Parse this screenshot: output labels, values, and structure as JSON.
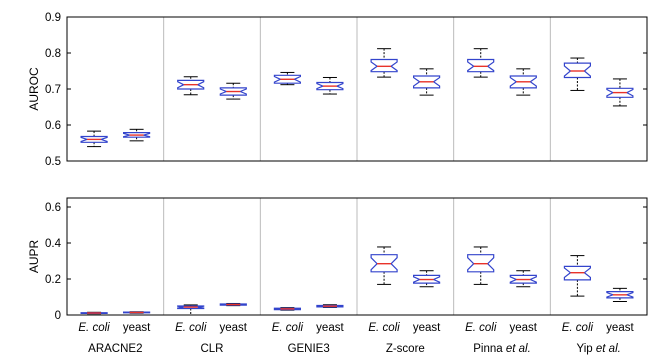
{
  "chart_data": {
    "type": "box",
    "groups": [
      {
        "label": "ARACNE2",
        "parts": [
          {
            "text": "ARACNE2",
            "italic": false
          }
        ]
      },
      {
        "label": "CLR",
        "parts": [
          {
            "text": "CLR",
            "italic": false
          }
        ]
      },
      {
        "label": "GENIE3",
        "parts": [
          {
            "text": "GENIE3",
            "italic": false
          }
        ]
      },
      {
        "label": "Z-score",
        "parts": [
          {
            "text": "Z-score",
            "italic": false
          }
        ]
      },
      {
        "label": "Pinna et al.",
        "parts": [
          {
            "text": "Pinna ",
            "italic": false
          },
          {
            "text": "et al.",
            "italic": true
          }
        ]
      },
      {
        "label": "Yip et al.",
        "parts": [
          {
            "text": "Yip ",
            "italic": false
          },
          {
            "text": "et al.",
            "italic": true
          }
        ]
      }
    ],
    "categories": [
      {
        "label": "E. coli",
        "italic": true
      },
      {
        "label": "yeast",
        "italic": false
      }
    ],
    "colors": {
      "box": "#3344cc",
      "median": "#e8332a",
      "whisker": "#000000",
      "separator": "#bbbbbb",
      "frame": "#000000"
    },
    "panels": [
      {
        "ylabel": "AUROC",
        "ylim": [
          0.5,
          0.9
        ],
        "yticks": [
          "0.5",
          "0.6",
          "0.7",
          "0.8",
          "0.9"
        ],
        "boxes": [
          {
            "group": "ARACNE2",
            "category": "E. coli",
            "whisker_low": 0.54,
            "q1": 0.552,
            "median": 0.56,
            "q3": 0.568,
            "whisker_high": 0.583
          },
          {
            "group": "ARACNE2",
            "category": "yeast",
            "whisker_low": 0.556,
            "q1": 0.566,
            "median": 0.572,
            "q3": 0.579,
            "whisker_high": 0.588
          },
          {
            "group": "CLR",
            "category": "E. coli",
            "whisker_low": 0.684,
            "q1": 0.7,
            "median": 0.712,
            "q3": 0.724,
            "whisker_high": 0.734
          },
          {
            "group": "CLR",
            "category": "yeast",
            "whisker_low": 0.672,
            "q1": 0.683,
            "median": 0.693,
            "q3": 0.703,
            "whisker_high": 0.716
          },
          {
            "group": "GENIE3",
            "category": "E. coli",
            "whisker_low": 0.712,
            "q1": 0.716,
            "median": 0.727,
            "q3": 0.738,
            "whisker_high": 0.746
          },
          {
            "group": "GENIE3",
            "category": "yeast",
            "whisker_low": 0.686,
            "q1": 0.698,
            "median": 0.708,
            "q3": 0.718,
            "whisker_high": 0.732
          },
          {
            "group": "Z-score",
            "category": "E. coli",
            "whisker_low": 0.733,
            "q1": 0.748,
            "median": 0.763,
            "q3": 0.782,
            "whisker_high": 0.812
          },
          {
            "group": "Z-score",
            "category": "yeast",
            "whisker_low": 0.683,
            "q1": 0.703,
            "median": 0.72,
            "q3": 0.736,
            "whisker_high": 0.756
          },
          {
            "group": "Pinna et al.",
            "category": "E. coli",
            "whisker_low": 0.733,
            "q1": 0.748,
            "median": 0.763,
            "q3": 0.782,
            "whisker_high": 0.812
          },
          {
            "group": "Pinna et al.",
            "category": "yeast",
            "whisker_low": 0.683,
            "q1": 0.703,
            "median": 0.72,
            "q3": 0.736,
            "whisker_high": 0.756
          },
          {
            "group": "Yip et al.",
            "category": "E. coli",
            "whisker_low": 0.696,
            "q1": 0.732,
            "median": 0.75,
            "q3": 0.772,
            "whisker_high": 0.786
          },
          {
            "group": "Yip et al.",
            "category": "yeast",
            "whisker_low": 0.653,
            "q1": 0.677,
            "median": 0.69,
            "q3": 0.702,
            "whisker_high": 0.728
          }
        ]
      },
      {
        "ylabel": "AUPR",
        "ylim": [
          0,
          0.65
        ],
        "yticks": [
          "0",
          "0.2",
          "0.4",
          "0.6"
        ],
        "boxes": [
          {
            "group": "ARACNE2",
            "category": "E. coli",
            "whisker_low": 0.007,
            "q1": 0.009,
            "median": 0.011,
            "q3": 0.013,
            "whisker_high": 0.015
          },
          {
            "group": "ARACNE2",
            "category": "yeast",
            "whisker_low": 0.01,
            "q1": 0.012,
            "median": 0.014,
            "q3": 0.016,
            "whisker_high": 0.018
          },
          {
            "group": "CLR",
            "category": "E. coli",
            "whisker_low": 0.0,
            "q1": 0.036,
            "median": 0.044,
            "q3": 0.05,
            "whisker_high": 0.056
          },
          {
            "group": "CLR",
            "category": "yeast",
            "whisker_low": 0.052,
            "q1": 0.055,
            "median": 0.058,
            "q3": 0.061,
            "whisker_high": 0.064
          },
          {
            "group": "GENIE3",
            "category": "E. coli",
            "whisker_low": 0.027,
            "q1": 0.03,
            "median": 0.034,
            "q3": 0.038,
            "whisker_high": 0.041
          },
          {
            "group": "GENIE3",
            "category": "yeast",
            "whisker_low": 0.042,
            "q1": 0.045,
            "median": 0.049,
            "q3": 0.053,
            "whisker_high": 0.057
          },
          {
            "group": "Z-score",
            "category": "E. coli",
            "whisker_low": 0.17,
            "q1": 0.24,
            "median": 0.285,
            "q3": 0.335,
            "whisker_high": 0.378
          },
          {
            "group": "Z-score",
            "category": "yeast",
            "whisker_low": 0.157,
            "q1": 0.177,
            "median": 0.197,
            "q3": 0.22,
            "whisker_high": 0.246
          },
          {
            "group": "Pinna et al.",
            "category": "E. coli",
            "whisker_low": 0.17,
            "q1": 0.24,
            "median": 0.285,
            "q3": 0.335,
            "whisker_high": 0.378
          },
          {
            "group": "Pinna et al.",
            "category": "yeast",
            "whisker_low": 0.157,
            "q1": 0.177,
            "median": 0.197,
            "q3": 0.22,
            "whisker_high": 0.246
          },
          {
            "group": "Yip et al.",
            "category": "E. coli",
            "whisker_low": 0.105,
            "q1": 0.195,
            "median": 0.235,
            "q3": 0.27,
            "whisker_high": 0.33
          },
          {
            "group": "Yip et al.",
            "category": "yeast",
            "whisker_low": 0.075,
            "q1": 0.095,
            "median": 0.112,
            "q3": 0.13,
            "whisker_high": 0.148
          }
        ]
      }
    ],
    "grid": false,
    "legend": "none"
  }
}
